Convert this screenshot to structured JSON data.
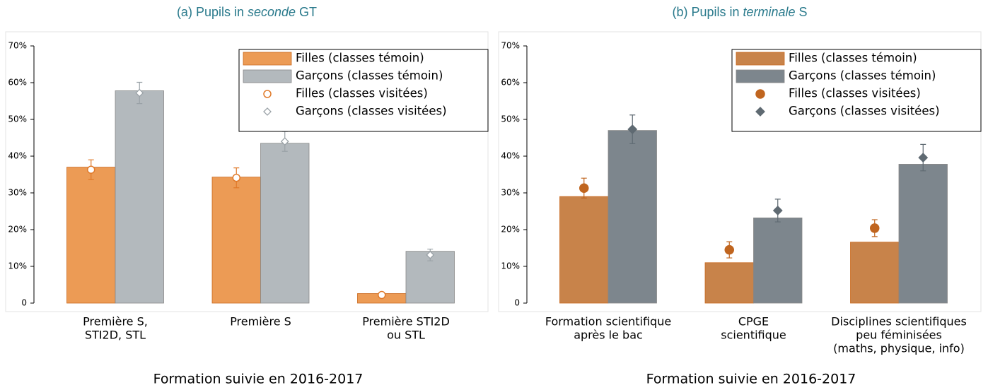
{
  "chart_data": [
    {
      "type": "bar",
      "title": [
        {
          "text": "(a) Pupils in "
        },
        {
          "text": "seconde",
          "italic": true
        },
        {
          "text": " GT"
        }
      ],
      "x_label": "Formation suivie en 2016-2017",
      "categories": [
        [
          "Première S,",
          "STI2D, STL"
        ],
        [
          "Première S"
        ],
        [
          "Première STI2D",
          "ou STL"
        ]
      ],
      "ylim": [
        0,
        70
      ],
      "yticks": [
        0,
        {
          "value": 10,
          "label": "10%"
        },
        {
          "value": 20,
          "label": "20%"
        },
        {
          "value": 30,
          "label": "30%"
        },
        {
          "value": 40,
          "label": "40%"
        },
        {
          "value": 50,
          "label": "50%"
        },
        {
          "value": 60,
          "label": "60%"
        },
        {
          "value": 70,
          "label": "70%"
        }
      ],
      "legend": "upper right",
      "series": [
        {
          "name": "Filles (classes témoin)",
          "kind": "bar",
          "color": "#ec9b55",
          "values": [
            37,
            34.3,
            2.6
          ]
        },
        {
          "name": "Garçons (classes témoin)",
          "kind": "bar",
          "color": "#b3b9bd",
          "values": [
            57.8,
            43.5,
            14.1
          ]
        },
        {
          "name": "Filles (classes visitées)",
          "kind": "point",
          "marker": "circle",
          "filled": false,
          "color": "#e07a2a",
          "values": [
            36.3,
            34.1,
            2.2
          ],
          "errors": [
            2.7,
            2.7,
            0.5
          ]
        },
        {
          "name": "Garçons (classes visitées)",
          "kind": "point",
          "marker": "diamond",
          "filled": false,
          "color": "#9aa2a7",
          "values": [
            57.2,
            44,
            13.1
          ],
          "errors": [
            2.9,
            2.7,
            1.6
          ]
        }
      ]
    },
    {
      "type": "bar",
      "title": [
        {
          "text": "(b) Pupils in "
        },
        {
          "text": "terminale",
          "italic": true
        },
        {
          "text": " S"
        }
      ],
      "x_label": "Formation suivie en 2016-2017",
      "categories": [
        [
          "Formation scientifique",
          "après le bac"
        ],
        [
          "CPGE",
          "scientifique"
        ],
        [
          "Disciplines scientifiques",
          "peu féminisées",
          "(maths, physique, info)"
        ]
      ],
      "ylim": [
        0,
        70
      ],
      "yticks": [
        0,
        {
          "value": 10,
          "label": "10%"
        },
        {
          "value": 20,
          "label": "20%"
        },
        {
          "value": 30,
          "label": "30%"
        },
        {
          "value": 40,
          "label": "40%"
        },
        {
          "value": 50,
          "label": "50%"
        },
        {
          "value": 60,
          "label": "60%"
        },
        {
          "value": 70,
          "label": "70%"
        }
      ],
      "legend": "upper right",
      "series": [
        {
          "name": "Filles (classes témoin)",
          "kind": "bar",
          "color": "#c8834a",
          "values": [
            29,
            11,
            16.6
          ]
        },
        {
          "name": "Garçons (classes témoin)",
          "kind": "bar",
          "color": "#7d868d",
          "values": [
            47,
            23.2,
            37.8
          ]
        },
        {
          "name": "Filles (classes visitées)",
          "kind": "point",
          "marker": "circle",
          "filled": true,
          "color": "#c0651f",
          "values": [
            31.3,
            14.5,
            20.4
          ],
          "errors": [
            2.7,
            2.2,
            2.3
          ]
        },
        {
          "name": "Garçons (classes visitées)",
          "kind": "point",
          "marker": "diamond",
          "filled": true,
          "color": "#5f6a72",
          "values": [
            47.3,
            25.2,
            39.6
          ],
          "errors": [
            3.9,
            3.1,
            3.6
          ]
        }
      ]
    }
  ]
}
